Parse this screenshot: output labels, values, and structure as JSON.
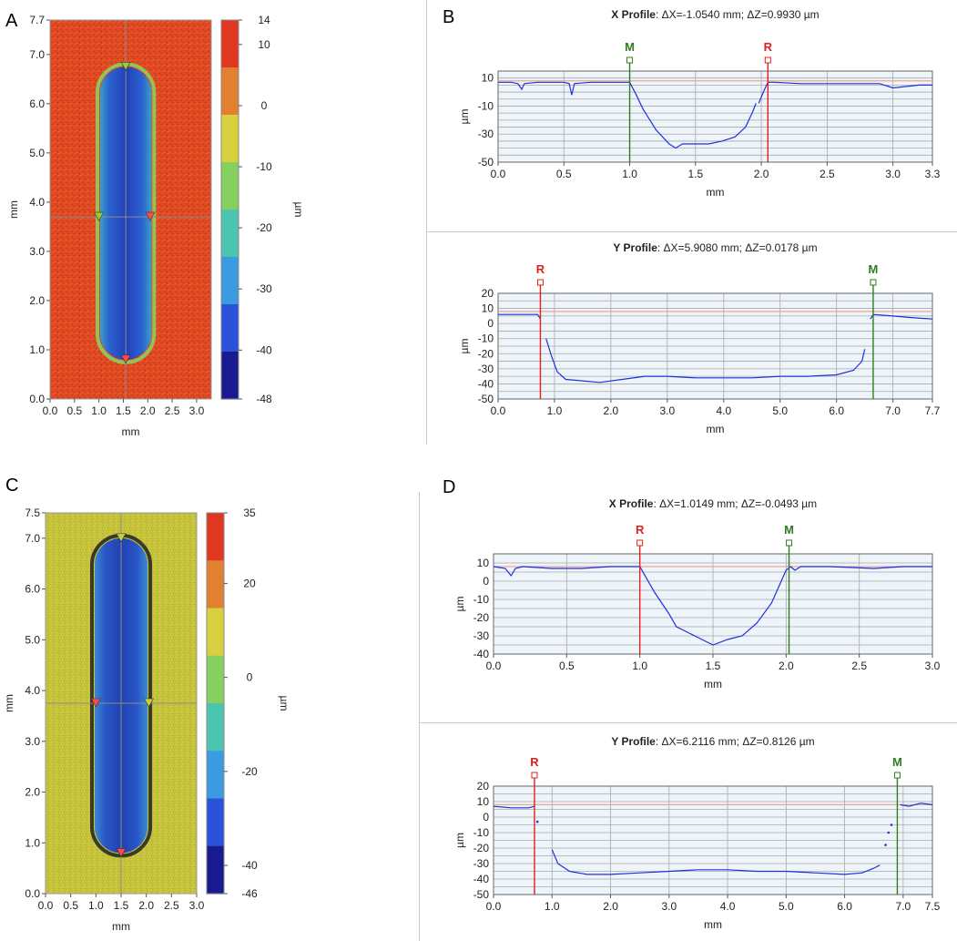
{
  "panel_letters": [
    "A",
    "B",
    "C",
    "D"
  ],
  "chart_data": [
    {
      "panel": "A",
      "type": "heatmap",
      "xlabel": "mm",
      "ylabel": "mm",
      "colorbar_label": "µm",
      "xlim": [
        0.0,
        3.3
      ],
      "ylim": [
        0.0,
        7.7
      ],
      "xticks": [
        0.0,
        0.5,
        1.0,
        1.5,
        2.0,
        2.5,
        3.0
      ],
      "xtick_labels": [
        "0.0",
        "0.5",
        "1.0",
        "1.5",
        "2.0",
        "2.5",
        "3.0"
      ],
      "yticks": [
        0.0,
        1.0,
        2.0,
        3.0,
        4.0,
        5.0,
        6.0,
        7.0,
        7.7
      ],
      "ytick_labels": [
        "0.0",
        "1.0",
        "2.0",
        "3.0",
        "4.0",
        "5.0",
        "6.0",
        "7.0",
        "7.7"
      ],
      "colorbar_range": [
        -48,
        14
      ],
      "colorbar_ticks": [
        14,
        10,
        0,
        -10,
        -20,
        -30,
        -40,
        -48
      ],
      "colorbar_tick_labels": [
        "14",
        "10",
        "0",
        "-10",
        "-20",
        "-30",
        "-40",
        "-48"
      ],
      "colormap": [
        "#1a1a90",
        "#2a52d8",
        "#3c9be0",
        "#4cc5b0",
        "#86d060",
        "#d8d040",
        "#e08030",
        "#e03820"
      ],
      "background_value": 6,
      "groove_value": -38,
      "groove": {
        "x_center": 1.55,
        "width": 1.05,
        "y_start": 0.8,
        "y_end": 6.75
      },
      "crosshair": {
        "x": 1.55,
        "y": 3.7
      },
      "markers": [
        {
          "x": 1.55,
          "y": 6.75,
          "color": "#9acd32",
          "dir": "down"
        },
        {
          "x": 1.0,
          "y": 3.7,
          "color": "#9acd32",
          "dir": "down"
        },
        {
          "x": 2.05,
          "y": 3.7,
          "color": "#ff4a4a",
          "dir": "down"
        },
        {
          "x": 1.55,
          "y": 0.8,
          "color": "#ff4a4a",
          "dir": "down"
        }
      ]
    },
    {
      "panel": "B-top",
      "type": "line",
      "title_bold": "X Profile",
      "title_rest": ": ΔX=-1.0540 mm; ΔZ=0.9930 µm",
      "xlabel": "mm",
      "ylabel": "µm",
      "xlim": [
        0.0,
        3.3
      ],
      "ylim": [
        -50,
        15
      ],
      "xticks": [
        0.0,
        0.5,
        1.0,
        1.5,
        2.0,
        2.5,
        3.0,
        3.3
      ],
      "xtick_labels": [
        "0.0",
        "0.5",
        "1.0",
        "1.5",
        "2.0",
        "2.5",
        "3.0",
        "3.3"
      ],
      "yticks": [
        10,
        -10,
        -30,
        -50
      ],
      "ytick_labels": [
        "10",
        "-10",
        "-30",
        "-50"
      ],
      "ygrid": [
        15,
        10,
        5,
        0,
        -5,
        -10,
        -15,
        -20,
        -25,
        -30,
        -35,
        -40,
        -45,
        -50
      ],
      "xgrid": [
        0.5,
        1.0,
        1.5,
        2.0,
        2.5,
        3.0
      ],
      "reference_line": 8,
      "cursors": [
        {
          "label": "M",
          "x": 1.0,
          "color": "#2e7d1e"
        },
        {
          "label": "R",
          "x": 2.05,
          "color": "#e02020"
        }
      ],
      "series": [
        {
          "x": [
            0.0,
            0.1,
            0.15,
            0.18,
            0.2,
            0.3,
            0.5,
            0.54,
            0.56,
            0.58,
            0.7,
            0.9,
            1.0,
            1.05,
            1.1,
            1.2,
            1.3,
            1.35,
            1.4,
            1.5,
            1.6,
            1.7,
            1.8,
            1.88,
            1.93,
            1.96
          ],
          "y": [
            7,
            7,
            6,
            2,
            6,
            7,
            7,
            6,
            -2,
            6,
            7,
            7,
            7,
            -2,
            -12,
            -27,
            -37,
            -40,
            -37,
            -37,
            -37,
            -35,
            -32,
            -25,
            -15,
            -8
          ]
        },
        {
          "x": [
            1.98,
            2.02,
            2.05,
            2.1,
            2.3,
            2.6,
            2.9,
            3.0,
            3.2,
            3.3
          ],
          "y": [
            -8,
            1,
            7,
            7,
            6,
            6,
            6,
            3,
            5,
            5
          ]
        }
      ]
    },
    {
      "panel": "B-bottom",
      "type": "line",
      "title_bold": "Y Profile",
      "title_rest": ": ΔX=5.9080 mm; ΔZ=0.0178 µm",
      "xlabel": "mm",
      "ylabel": "µm",
      "xlim": [
        0.0,
        7.7
      ],
      "ylim": [
        -50,
        20
      ],
      "xticks": [
        0.0,
        1.0,
        2.0,
        3.0,
        4.0,
        5.0,
        6.0,
        7.0,
        7.7
      ],
      "xtick_labels": [
        "0.0",
        "1.0",
        "2.0",
        "3.0",
        "4.0",
        "5.0",
        "6.0",
        "7.0",
        "7.7"
      ],
      "yticks": [
        20,
        10,
        0,
        -10,
        -20,
        -30,
        -40,
        -50
      ],
      "ytick_labels": [
        "20",
        "10",
        "0",
        "-10",
        "-20",
        "-30",
        "-40",
        "-50"
      ],
      "ygrid": [
        20,
        15,
        10,
        5,
        0,
        -5,
        -10,
        -15,
        -20,
        -25,
        -30,
        -35,
        -40,
        -45,
        -50
      ],
      "xgrid": [
        1.0,
        2.0,
        3.0,
        4.0,
        5.0,
        6.0,
        7.0
      ],
      "reference_line": 8,
      "cursors": [
        {
          "label": "R",
          "x": 0.75,
          "color": "#e02020"
        },
        {
          "label": "M",
          "x": 6.65,
          "color": "#2e7d1e"
        }
      ],
      "series": [
        {
          "x": [
            0.0,
            0.3,
            0.7,
            0.75
          ],
          "y": [
            6,
            6,
            6,
            3
          ]
        },
        {
          "x": [
            0.85,
            0.95,
            1.05,
            1.2,
            1.5,
            1.8,
            2.2,
            2.6,
            3.0,
            3.5,
            4.0,
            4.5,
            5.0,
            5.5,
            6.0,
            6.3,
            6.45,
            6.5
          ],
          "y": [
            -10,
            -22,
            -32,
            -37,
            -38,
            -39,
            -37,
            -35,
            -35,
            -36,
            -36,
            -36,
            -35,
            -35,
            -34,
            -31,
            -25,
            -17
          ]
        },
        {
          "x": [
            6.6,
            6.65,
            7.0,
            7.3,
            7.7
          ],
          "y": [
            3,
            6,
            5,
            4,
            3
          ]
        }
      ]
    },
    {
      "panel": "C",
      "type": "heatmap",
      "xlabel": "mm",
      "ylabel": "mm",
      "colorbar_label": "µm",
      "xlim": [
        0.0,
        3.0
      ],
      "ylim": [
        0.0,
        7.5
      ],
      "xticks": [
        0.0,
        0.5,
        1.0,
        1.5,
        2.0,
        2.5,
        3.0
      ],
      "xtick_labels": [
        "0.0",
        "0.5",
        "1.0",
        "1.5",
        "2.0",
        "2.5",
        "3.0"
      ],
      "yticks": [
        0.0,
        1.0,
        2.0,
        3.0,
        4.0,
        5.0,
        6.0,
        7.0,
        7.5
      ],
      "ytick_labels": [
        "0.0",
        "1.0",
        "2.0",
        "3.0",
        "4.0",
        "5.0",
        "6.0",
        "7.0",
        "7.5"
      ],
      "colorbar_range": [
        -46,
        35
      ],
      "colorbar_ticks": [
        35,
        20,
        0,
        -20,
        -40,
        -46
      ],
      "colorbar_tick_labels": [
        "35",
        "20",
        "0",
        "-20",
        "-40",
        "-46"
      ],
      "colormap": [
        "#1a1a90",
        "#2a52d8",
        "#3c9be0",
        "#4cc5b0",
        "#86d060",
        "#d8d040",
        "#e08030",
        "#e03820"
      ],
      "background_value": 6,
      "groove_value": -36,
      "groove": {
        "x_center": 1.5,
        "width": 1.05,
        "y_start": 0.8,
        "y_end": 7.0
      },
      "crosshair": {
        "x": 1.5,
        "y": 3.75
      },
      "markers": [
        {
          "x": 1.5,
          "y": 7.0,
          "color": "#c8d040",
          "dir": "down"
        },
        {
          "x": 1.0,
          "y": 3.75,
          "color": "#ff4a4a",
          "dir": "down"
        },
        {
          "x": 2.05,
          "y": 3.75,
          "color": "#c8d040",
          "dir": "down"
        },
        {
          "x": 1.5,
          "y": 0.8,
          "color": "#ff4a4a",
          "dir": "down"
        }
      ]
    },
    {
      "panel": "D-top",
      "type": "line",
      "title_bold": "X Profile",
      "title_rest": ": ΔX=1.0149 mm; ΔZ=-0.0493 µm",
      "xlabel": "mm",
      "ylabel": "µm",
      "xlim": [
        0.0,
        3.0
      ],
      "ylim": [
        -40,
        15
      ],
      "xticks": [
        0.0,
        0.5,
        1.0,
        1.5,
        2.0,
        2.5,
        3.0
      ],
      "xtick_labels": [
        "0.0",
        "0.5",
        "1.0",
        "1.5",
        "2.0",
        "2.5",
        "3.0"
      ],
      "yticks": [
        10,
        0,
        -10,
        -20,
        -30,
        -40
      ],
      "ytick_labels": [
        "10",
        "0",
        "-10",
        "-20",
        "-30",
        "-40"
      ],
      "ygrid": [
        15,
        10,
        5,
        0,
        -5,
        -10,
        -15,
        -20,
        -25,
        -30,
        -35,
        -40
      ],
      "xgrid": [
        0.5,
        1.0,
        1.5,
        2.0,
        2.5
      ],
      "reference_line": 8,
      "cursors": [
        {
          "label": "R",
          "x": 1.0,
          "color": "#e02020"
        },
        {
          "label": "M",
          "x": 2.02,
          "color": "#2e7d1e"
        }
      ],
      "series": [
        {
          "x": [
            0.0,
            0.08,
            0.12,
            0.15,
            0.2,
            0.4,
            0.6,
            0.8,
            1.0,
            1.1,
            1.2,
            1.25,
            1.3,
            1.4,
            1.5,
            1.6,
            1.7,
            1.8,
            1.9,
            1.95,
            2.0,
            2.03,
            2.06,
            2.1,
            2.3,
            2.6,
            2.8,
            3.0
          ],
          "y": [
            8,
            7,
            3,
            7,
            8,
            7,
            7,
            8,
            8,
            -6,
            -18,
            -25,
            -27,
            -31,
            -35,
            -32,
            -30,
            -23,
            -12,
            -3,
            6,
            8,
            6,
            8,
            8,
            7,
            8,
            8
          ]
        }
      ]
    },
    {
      "panel": "D-bottom",
      "type": "line",
      "title_bold": "Y Profile",
      "title_rest": ": ΔX=6.2116 mm; ΔZ=0.8126 µm",
      "xlabel": "mm",
      "ylabel": "µm",
      "xlim": [
        0.0,
        7.5
      ],
      "ylim": [
        -50,
        20
      ],
      "xticks": [
        0.0,
        1.0,
        2.0,
        3.0,
        4.0,
        5.0,
        6.0,
        7.0,
        7.5
      ],
      "xtick_labels": [
        "0.0",
        "1.0",
        "2.0",
        "3.0",
        "4.0",
        "5.0",
        "6.0",
        "7.0",
        "7.5"
      ],
      "yticks": [
        20,
        10,
        0,
        -10,
        -20,
        -30,
        -40,
        -50
      ],
      "ytick_labels": [
        "20",
        "10",
        "0",
        "-10",
        "-20",
        "-30",
        "-40",
        "-50"
      ],
      "ygrid": [
        20,
        15,
        10,
        5,
        0,
        -5,
        -10,
        -15,
        -20,
        -25,
        -30,
        -35,
        -40,
        -45,
        -50
      ],
      "xgrid": [
        1.0,
        2.0,
        3.0,
        4.0,
        5.0,
        6.0,
        7.0
      ],
      "reference_line": 8,
      "cursors": [
        {
          "label": "R",
          "x": 0.7,
          "color": "#e02020"
        },
        {
          "label": "M",
          "x": 6.9,
          "color": "#2e7d1e"
        }
      ],
      "series": [
        {
          "x": [
            0.0,
            0.3,
            0.6,
            0.7
          ],
          "y": [
            7,
            6,
            6,
            7
          ]
        },
        {
          "x": [
            1.0,
            1.1,
            1.3,
            1.6,
            2.0,
            2.5,
            3.0,
            3.5,
            4.0,
            4.5,
            5.0,
            5.5,
            6.0,
            6.3,
            6.5,
            6.6
          ],
          "y": [
            -21,
            -30,
            -35,
            -37,
            -37,
            -36,
            -35,
            -34,
            -34,
            -35,
            -35,
            -36,
            -37,
            -36,
            -33,
            -31
          ]
        },
        {
          "x": [
            6.95,
            7.1,
            7.3,
            7.5
          ],
          "y": [
            8,
            7,
            9,
            8
          ]
        }
      ],
      "scatter_points": {
        "x": [
          0.75,
          6.7,
          6.75,
          6.8
        ],
        "y": [
          -3,
          -18,
          -10,
          -5
        ]
      }
    }
  ]
}
